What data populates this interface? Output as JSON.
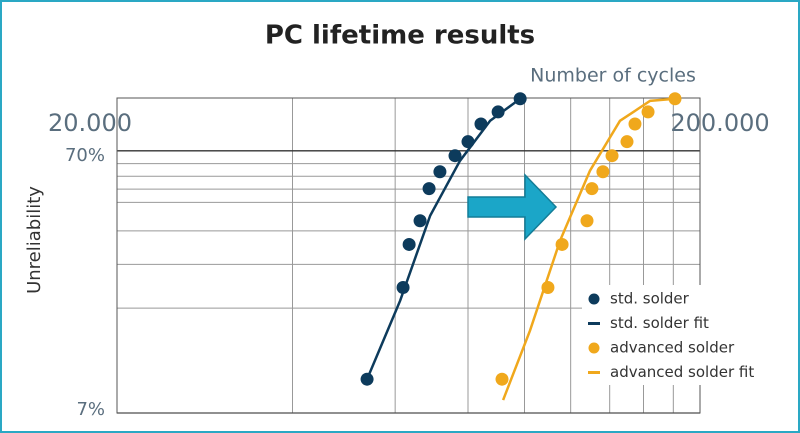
{
  "chart_data": {
    "type": "scatter",
    "title": "PC lifetime results",
    "x_label": "Number of cycles",
    "y_label": "Unreliability",
    "x_scale": "log",
    "y_scale": "weibull",
    "xlim": [
      20000,
      200000
    ],
    "xticks": [
      {
        "value": 20000,
        "label": "20.000"
      },
      {
        "value": 200000,
        "label": "200.000"
      }
    ],
    "xgrid": [
      40000,
      60000,
      80000,
      100000,
      120000,
      140000,
      160000,
      180000
    ],
    "ylim": [
      7,
      88
    ],
    "yticks": [
      {
        "value": 7,
        "label": "7%"
      },
      {
        "value": 70,
        "label": "70%"
      }
    ],
    "ygrid": [
      20,
      30,
      40,
      50,
      55,
      60,
      65
    ],
    "legend": "lower right",
    "series": [
      {
        "name": "std. solder",
        "color": "#0d3b5c",
        "style": "marker",
        "x": [
          53700,
          61900,
          63400,
          66200,
          68600,
          71600,
          76000,
          80000,
          84200,
          90100,
          98300
        ],
        "values": [
          9.9,
          24.3,
          35.7,
          43.4,
          55.2,
          61.8,
          68.1,
          73.5,
          79.9,
          83.9,
          87.8
        ]
      },
      {
        "name": "std. solder fit",
        "color": "#0d3b5c",
        "style": "line",
        "x": [
          53700,
          61200,
          68900,
          77500,
          87300,
          98300
        ],
        "values": [
          9.9,
          21.5,
          45.2,
          66.1,
          81.0,
          87.8
        ]
      },
      {
        "name": "advanced solder",
        "color": "#f0a81c",
        "style": "marker",
        "x": [
          91500,
          109700,
          116000,
          128000,
          130500,
          136300,
          141300,
          149900,
          154700,
          162900,
          181200
        ],
        "values": [
          9.9,
          24.3,
          35.7,
          43.4,
          55.2,
          61.8,
          68.1,
          73.5,
          79.9,
          83.9,
          87.8
        ]
      },
      {
        "name": "advanced solder fit",
        "color": "#f0a81c",
        "style": "line",
        "x": [
          91900,
          102200,
          115100,
          129500,
          145800,
          164200,
          181200
        ],
        "values": [
          8.0,
          16.1,
          36.9,
          62.2,
          81.0,
          87.2,
          87.8
        ]
      }
    ]
  }
}
